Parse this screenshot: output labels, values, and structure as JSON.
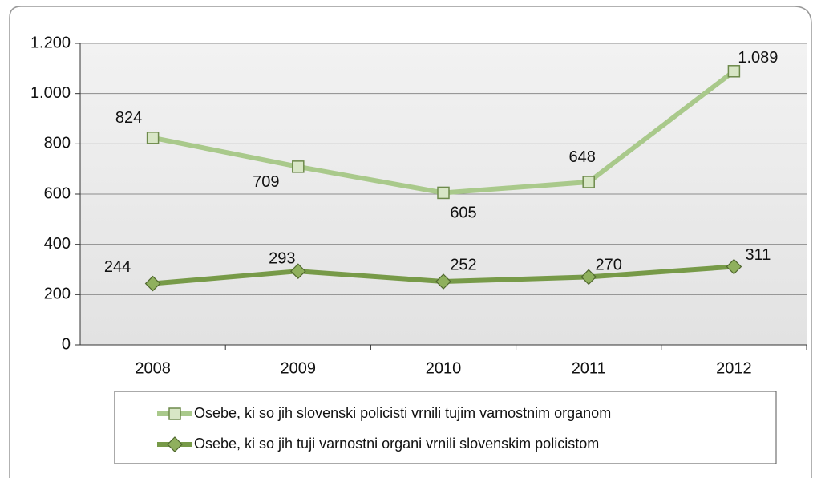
{
  "chart_data": {
    "type": "line",
    "categories": [
      "2008",
      "2009",
      "2010",
      "2011",
      "2012"
    ],
    "series": [
      {
        "name": "Osebe, ki so jih slovenski policisti vrnili tujim varnostnim organom",
        "color": "#a9c98b",
        "marker": "square",
        "values": [
          824,
          709,
          605,
          648,
          1089
        ],
        "value_labels": [
          "824",
          "709",
          "605",
          "648",
          "1.089"
        ]
      },
      {
        "name": "Osebe, ki so jih tuji varnostni organi vrnili slovenskim policistom",
        "color": "#779a48",
        "marker": "diamond",
        "values": [
          244,
          293,
          252,
          270,
          311
        ]
      }
    ],
    "ylim": [
      0,
      1200
    ],
    "yticks": [
      0,
      200,
      400,
      600,
      800,
      {
        "value": 1000,
        "label": "1.000"
      },
      {
        "value": 1200,
        "label": "1.200"
      }
    ],
    "grid": true,
    "legend": "bottom"
  }
}
